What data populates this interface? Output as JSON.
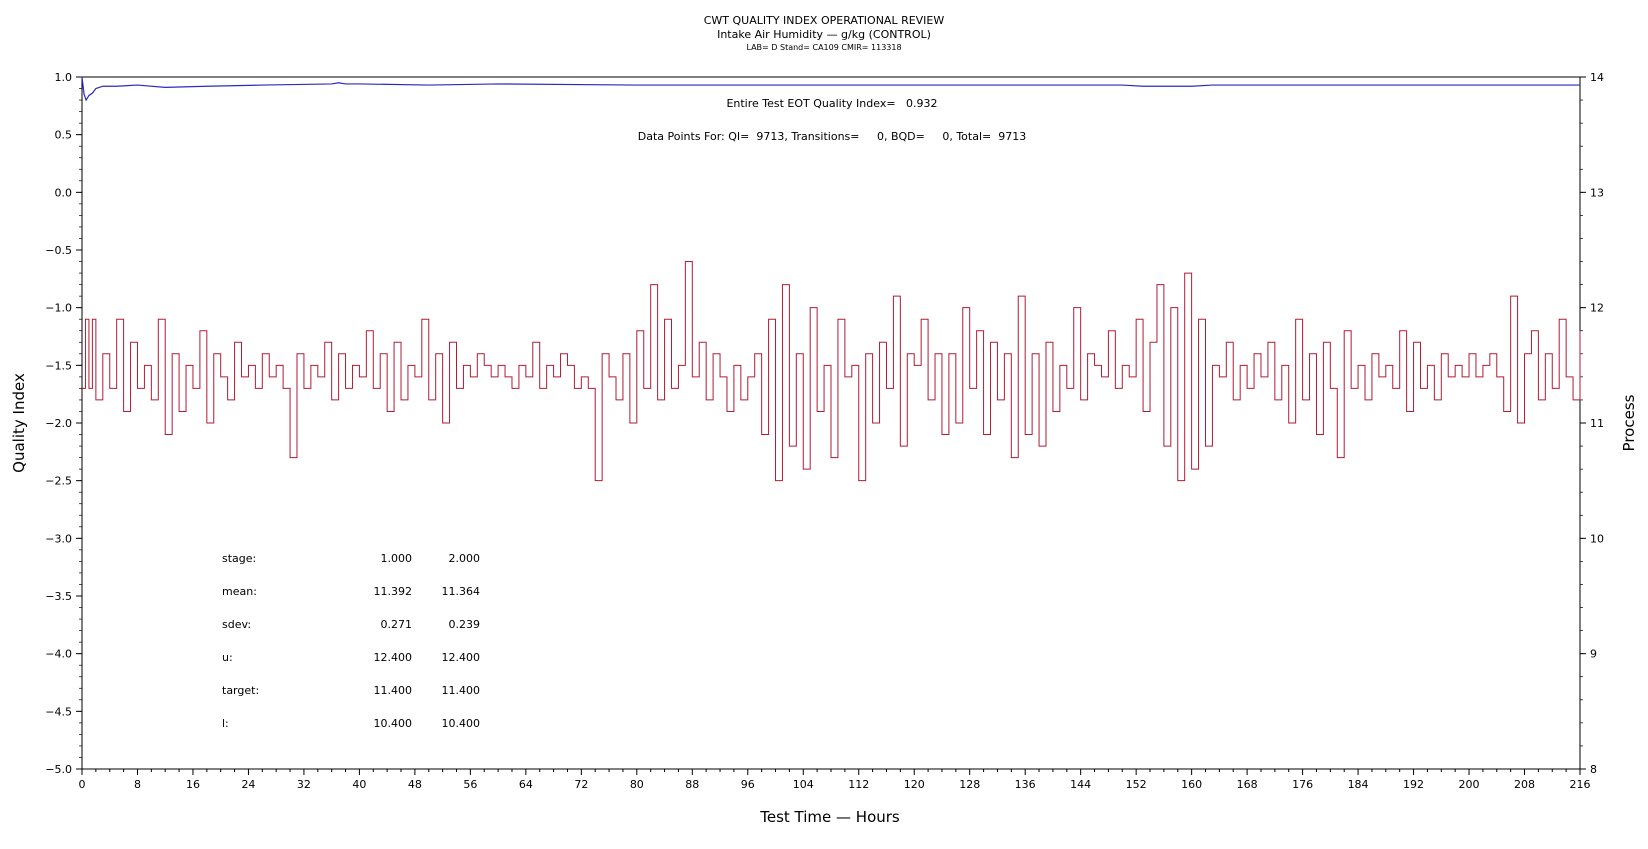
{
  "chart_data": {
    "type": "line",
    "title": "CWT QUALITY INDEX OPERATIONAL REVIEW",
    "subtitle": "Intake Air Humidity — g/kg (CONTROL)",
    "meta_line": "LAB= D Stand= CA109 CMIR= 113318",
    "xlabel": "Test Time — Hours",
    "ylabel_left": "Quality Index",
    "ylabel_right": "Process",
    "xlim": [
      0,
      216
    ],
    "ylim_left": [
      -5.0,
      1.0
    ],
    "ylim_right": [
      8,
      14
    ],
    "x_ticks": [
      0,
      8,
      16,
      24,
      32,
      40,
      48,
      56,
      64,
      72,
      80,
      88,
      96,
      104,
      112,
      120,
      128,
      136,
      144,
      152,
      160,
      168,
      176,
      184,
      192,
      200,
      208,
      216
    ],
    "y_ticks_left": [
      "1.0",
      "0.5",
      "0.0",
      "−0.5",
      "−1.0",
      "−1.5",
      "−2.0",
      "−2.5",
      "−3.0",
      "−3.5",
      "−4.0",
      "−4.5",
      "−5.0"
    ],
    "y_ticks_right": [
      14,
      13,
      12,
      11,
      10,
      9,
      8
    ],
    "annotations": {
      "eot_quality_index": "Entire Test EOT Quality Index=   0.932",
      "data_points": "Data Points For: QI=  9713, Transitions=     0, BQD=     0, Total=  9713"
    },
    "stats": {
      "labels": [
        "stage:",
        "mean:",
        "sdev:",
        "u:",
        "target:",
        "l:"
      ],
      "stage_1": [
        "1.000",
        "11.392",
        "0.271",
        "12.400",
        "11.400",
        "10.400"
      ],
      "stage_2": [
        "2.000",
        "11.364",
        "0.239",
        "12.400",
        "11.400",
        "10.400"
      ]
    },
    "series": [
      {
        "axis": "left",
        "color": "#2b2bbf",
        "x": [
          0,
          0.3,
          0.6,
          1,
          1.5,
          2,
          3,
          5,
          8,
          12,
          18,
          26,
          36,
          37,
          38,
          40,
          50,
          60,
          80,
          100,
          120,
          150,
          153,
          160,
          163,
          170,
          190,
          216
        ],
        "values": [
          1.0,
          0.85,
          0.8,
          0.84,
          0.86,
          0.9,
          0.92,
          0.92,
          0.93,
          0.91,
          0.92,
          0.93,
          0.94,
          0.95,
          0.94,
          0.94,
          0.93,
          0.94,
          0.93,
          0.93,
          0.93,
          0.93,
          0.92,
          0.92,
          0.93,
          0.93,
          0.93,
          0.93
        ]
      },
      {
        "axis": "right",
        "color": "#b01c35",
        "x": [
          0,
          0.5,
          1,
          1.5,
          2,
          3,
          4,
          5,
          6,
          7,
          8,
          9,
          10,
          11,
          12,
          13,
          14,
          15,
          16,
          17,
          18,
          19,
          20,
          21,
          22,
          23,
          24,
          25,
          26,
          27,
          28,
          29,
          30,
          31,
          32,
          33,
          34,
          35,
          36,
          37,
          38,
          39,
          40,
          41,
          42,
          43,
          44,
          45,
          46,
          47,
          48,
          49,
          50,
          51,
          52,
          53,
          54,
          55,
          56,
          57,
          58,
          59,
          60,
          61,
          62,
          63,
          64,
          65,
          66,
          67,
          68,
          69,
          70,
          71,
          72,
          73,
          74,
          75,
          76,
          77,
          78,
          79,
          80,
          81,
          82,
          83,
          84,
          85,
          86,
          87,
          88,
          89,
          90,
          91,
          92,
          93,
          94,
          95,
          96,
          97,
          98,
          99,
          100,
          101,
          102,
          103,
          104,
          105,
          106,
          107,
          108,
          109,
          110,
          111,
          112,
          113,
          114,
          115,
          116,
          117,
          118,
          119,
          120,
          121,
          122,
          123,
          124,
          125,
          126,
          127,
          128,
          129,
          130,
          131,
          132,
          133,
          134,
          135,
          136,
          137,
          138,
          139,
          140,
          141,
          142,
          143,
          144,
          145,
          146,
          147,
          148,
          149,
          150,
          151,
          152,
          153,
          154,
          155,
          156,
          157,
          158,
          159,
          160,
          161,
          162,
          163,
          164,
          165,
          166,
          167,
          168,
          169,
          170,
          171,
          172,
          173,
          174,
          175,
          176,
          177,
          178,
          179,
          180,
          181,
          182,
          183,
          184,
          185,
          186,
          187,
          188,
          189,
          190,
          191,
          192,
          193,
          194,
          195,
          196,
          197,
          198,
          199,
          200,
          201,
          202,
          203,
          204,
          205,
          206,
          207,
          208,
          209,
          210,
          211,
          212,
          213,
          214,
          215,
          216
        ],
        "values": [
          11.3,
          11.9,
          11.3,
          11.9,
          11.2,
          11.6,
          11.3,
          11.9,
          11.1,
          11.7,
          11.3,
          11.5,
          11.2,
          11.9,
          10.9,
          11.6,
          11.1,
          11.5,
          11.3,
          11.8,
          11.0,
          11.6,
          11.4,
          11.2,
          11.7,
          11.4,
          11.5,
          11.3,
          11.6,
          11.4,
          11.5,
          11.3,
          10.7,
          11.6,
          11.3,
          11.5,
          11.4,
          11.7,
          11.2,
          11.6,
          11.3,
          11.5,
          11.4,
          11.8,
          11.3,
          11.6,
          11.1,
          11.7,
          11.2,
          11.5,
          11.4,
          11.9,
          11.2,
          11.6,
          11.0,
          11.7,
          11.3,
          11.5,
          11.4,
          11.6,
          11.5,
          11.4,
          11.5,
          11.4,
          11.3,
          11.5,
          11.4,
          11.7,
          11.3,
          11.5,
          11.4,
          11.6,
          11.5,
          11.3,
          11.4,
          11.3,
          10.5,
          11.6,
          11.4,
          11.2,
          11.6,
          11.0,
          11.8,
          11.3,
          12.2,
          11.2,
          11.9,
          11.3,
          11.5,
          12.4,
          11.4,
          11.7,
          11.2,
          11.6,
          11.4,
          11.1,
          11.5,
          11.2,
          11.4,
          11.6,
          10.9,
          11.9,
          10.5,
          12.2,
          10.8,
          11.6,
          10.6,
          12.0,
          11.1,
          11.5,
          10.7,
          11.9,
          11.4,
          11.5,
          10.5,
          11.6,
          11.0,
          11.7,
          11.3,
          12.1,
          10.8,
          11.6,
          11.5,
          11.9,
          11.2,
          11.6,
          10.9,
          11.6,
          11.0,
          12.0,
          11.3,
          11.8,
          10.9,
          11.7,
          11.2,
          11.6,
          10.7,
          12.1,
          10.9,
          11.6,
          10.8,
          11.7,
          11.1,
          11.5,
          11.3,
          12.0,
          11.2,
          11.6,
          11.5,
          11.4,
          11.8,
          11.3,
          11.5,
          11.4,
          11.9,
          11.1,
          11.7,
          12.2,
          10.8,
          12.0,
          10.5,
          12.3,
          10.6,
          11.9,
          10.8,
          11.5,
          11.4,
          11.7,
          11.2,
          11.5,
          11.3,
          11.6,
          11.4,
          11.7,
          11.2,
          11.5,
          11.0,
          11.9,
          11.2,
          11.6,
          10.9,
          11.7,
          11.3,
          10.7,
          11.8,
          11.3,
          11.5,
          11.2,
          11.6,
          11.4,
          11.5,
          11.3,
          11.8,
          11.1,
          11.7,
          11.3,
          11.5,
          11.2,
          11.6,
          11.4,
          11.5,
          11.4,
          11.6,
          11.4,
          11.5,
          11.6,
          11.4,
          11.1,
          12.1,
          11.0,
          11.6,
          11.8,
          11.2,
          11.6,
          11.3,
          11.9,
          11.4,
          11.2,
          11.8
        ]
      }
    ]
  }
}
